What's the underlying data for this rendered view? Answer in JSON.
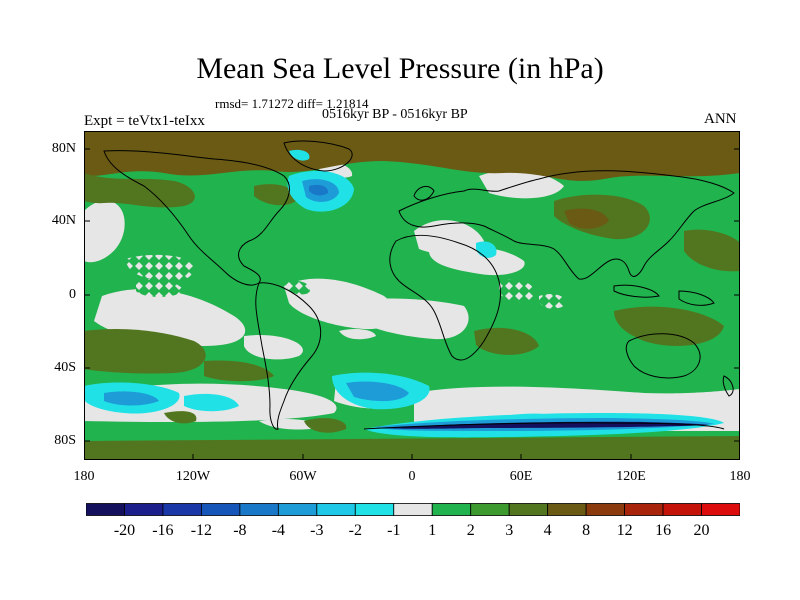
{
  "title": "Mean Sea Level Pressure (in hPa)",
  "stats": "rmsd= 1.71272 diff= 1.21814",
  "period": "0516kyr BP - 0516kyr BP",
  "experiment": "Expt = teVtx1-teIxx",
  "season": "ANN",
  "lat_ticks": [
    "80N",
    "40N",
    "0",
    "40S",
    "80S"
  ],
  "lon_ticks": [
    "180",
    "120W",
    "60W",
    "0",
    "60E",
    "120E",
    "180"
  ],
  "colorbar": {
    "labels": [
      "-20",
      "-16",
      "-12",
      "-8",
      "-4",
      "-3",
      "-2",
      "-1",
      "1",
      "2",
      "3",
      "4",
      "8",
      "12",
      "16",
      "20"
    ],
    "colors": [
      "#15105e",
      "#1c1e8c",
      "#1a37a8",
      "#1656b8",
      "#1a78c8",
      "#1e9cd8",
      "#1ec8e6",
      "#20e2e6",
      "#e6e6e6",
      "#21b34e",
      "#3c9a2f",
      "#52761f",
      "#6a5a14",
      "#8a3a0c",
      "#a8240a",
      "#c4140a",
      "#dc0c0c"
    ]
  },
  "colors": {
    "ocean_default": "#e6e6e6",
    "positive_small": "#21b34e",
    "positive_mid": "#52761f",
    "positive_high": "#6a5a14",
    "negative_small": "#20e2e6",
    "negative_mid": "#1e9cd8",
    "negative_strong": "#1a78c8"
  }
}
